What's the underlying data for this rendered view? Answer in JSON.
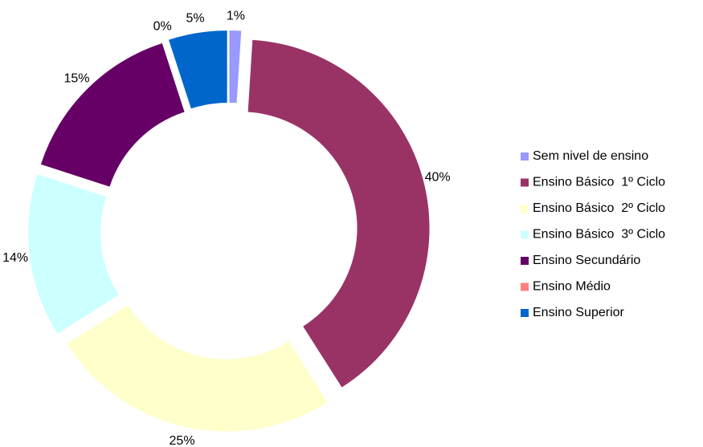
{
  "chart_data": {
    "type": "donut",
    "categories": [
      "Sem nivel de ensino",
      "Ensino Básico  1º Ciclo",
      "Ensino Básico  2º Ciclo",
      "Ensino Básico  3º Ciclo",
      "Ensino Secundário",
      "Ensino Médio",
      "Ensino Superior"
    ],
    "values": [
      1,
      40,
      25,
      14,
      15,
      0,
      5
    ],
    "value_labels": [
      "1%",
      "40%",
      "25%",
      "14%",
      "15%",
      "0%",
      "5%"
    ],
    "colors": [
      "#9999ff",
      "#993366",
      "#ffffcc",
      "#ccffff",
      "#660066",
      "#ff8080",
      "#0066cc"
    ],
    "legend": "right"
  }
}
